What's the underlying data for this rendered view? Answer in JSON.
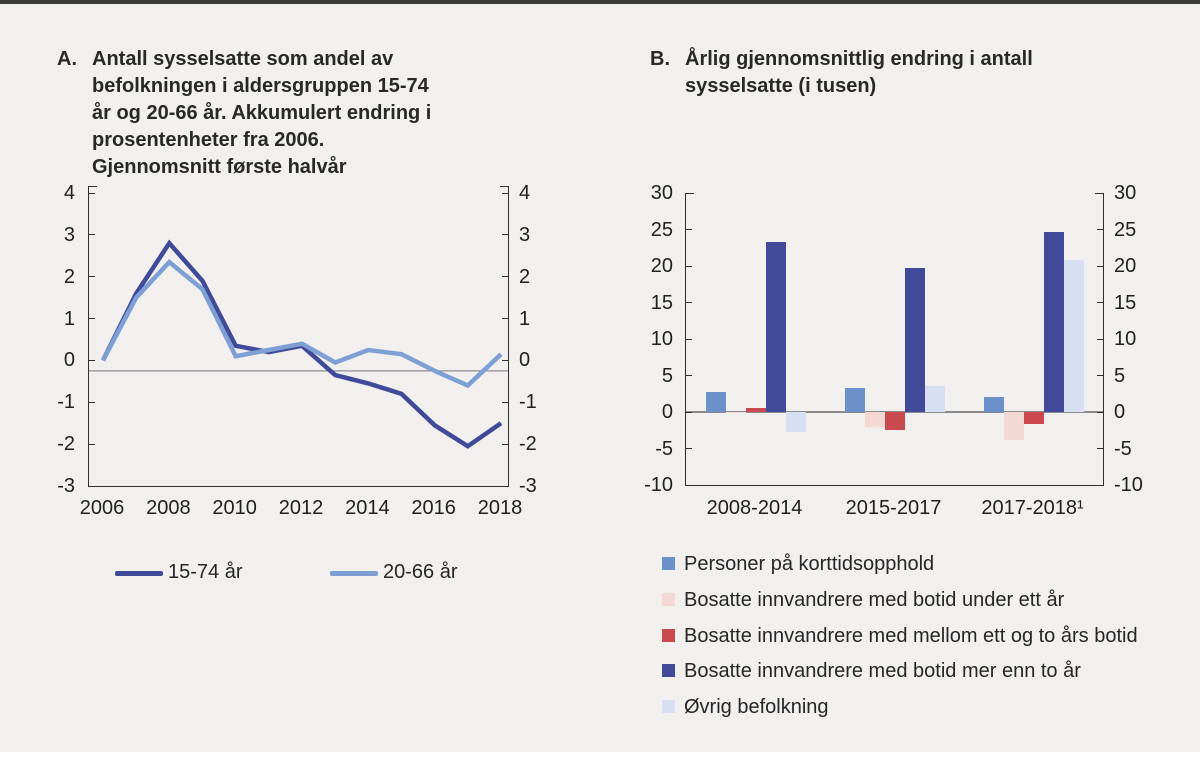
{
  "colors": {
    "background": "#f1f0ee",
    "top_bar": "#3a3a39",
    "axis": "#2f2f2e",
    "reference_line": "#8d8d94",
    "zero_line": "#8a8a8a",
    "text": "#262626"
  },
  "panels": {
    "a": {
      "label": "A.",
      "title": "Antall sysselsatte som andel av\nbefolkningen i aldersgruppen 15-74\når og 20-66 år. Akkumulert endring i\nprosentenheter fra 2006.\nGjennomsnitt første halvår"
    },
    "b": {
      "label": "B.",
      "title": "Årlig gjennomsnittlig endring i antall\nsysselsatte (i tusen)"
    }
  },
  "chart_data": [
    {
      "id": "employment-share-lines",
      "type": "line",
      "title": "Antall sysselsatte som andel av befolkningen i aldersgruppen 15-74 år og 20-66 år. Akkumulert endring i prosentenheter fra 2006. Gjennomsnitt første halvår",
      "x": [
        2006,
        2007,
        2008,
        2009,
        2010,
        2011,
        2012,
        2013,
        2014,
        2015,
        2016,
        2017,
        2018
      ],
      "x_ticks": [
        2006,
        2008,
        2010,
        2012,
        2014,
        2016,
        2018
      ],
      "ylim": [
        -3,
        4
      ],
      "y_ticks": [
        4,
        3,
        2,
        1,
        0,
        -1,
        -2,
        -3
      ],
      "reference_line_y": -0.25,
      "grid": false,
      "legend_position": "bottom",
      "series": [
        {
          "name": "15-74 år",
          "color": "#404a99",
          "values": [
            0,
            1.6,
            2.8,
            1.9,
            0.35,
            0.2,
            0.35,
            -0.35,
            -0.55,
            -0.8,
            -1.55,
            -2.05,
            -1.5
          ]
        },
        {
          "name": "20-66 år",
          "color": "#7d9fd4",
          "values": [
            0,
            1.5,
            2.35,
            1.7,
            0.1,
            0.25,
            0.4,
            -0.05,
            0.25,
            0.15,
            -0.25,
            -0.6,
            0.15
          ]
        }
      ]
    },
    {
      "id": "employment-change-bars",
      "type": "bar",
      "title": "Årlig gjennomsnittlig endring i antall sysselsatte (i tusen)",
      "categories": [
        "2008-2014",
        "2015-2017",
        "2017-2018¹"
      ],
      "ylim": [
        -10,
        30
      ],
      "y_ticks": [
        30,
        25,
        20,
        15,
        10,
        5,
        0,
        -5,
        -10
      ],
      "grid": false,
      "legend_position": "bottom",
      "series": [
        {
          "name": "Personer på korttidsopphold",
          "color": "#6c90c9",
          "values": [
            2.7,
            3.3,
            2.1
          ]
        },
        {
          "name": "Bosatte innvandrere med botid under ett år",
          "color": "#f3d8d3",
          "values": [
            -0.2,
            -2.1,
            -3.8
          ]
        },
        {
          "name": "Bosatte innvandrere med mellom ett og to års botid",
          "color": "#c9494f",
          "values": [
            0.5,
            -2.4,
            -1.6
          ]
        },
        {
          "name": "Bosatte innvandrere med botid mer enn to år",
          "color": "#404a99",
          "values": [
            23.3,
            19.7,
            24.6
          ]
        },
        {
          "name": "Øvrig befolkning",
          "color": "#d8dff3",
          "values": [
            -2.8,
            3.6,
            20.8
          ]
        }
      ]
    }
  ]
}
